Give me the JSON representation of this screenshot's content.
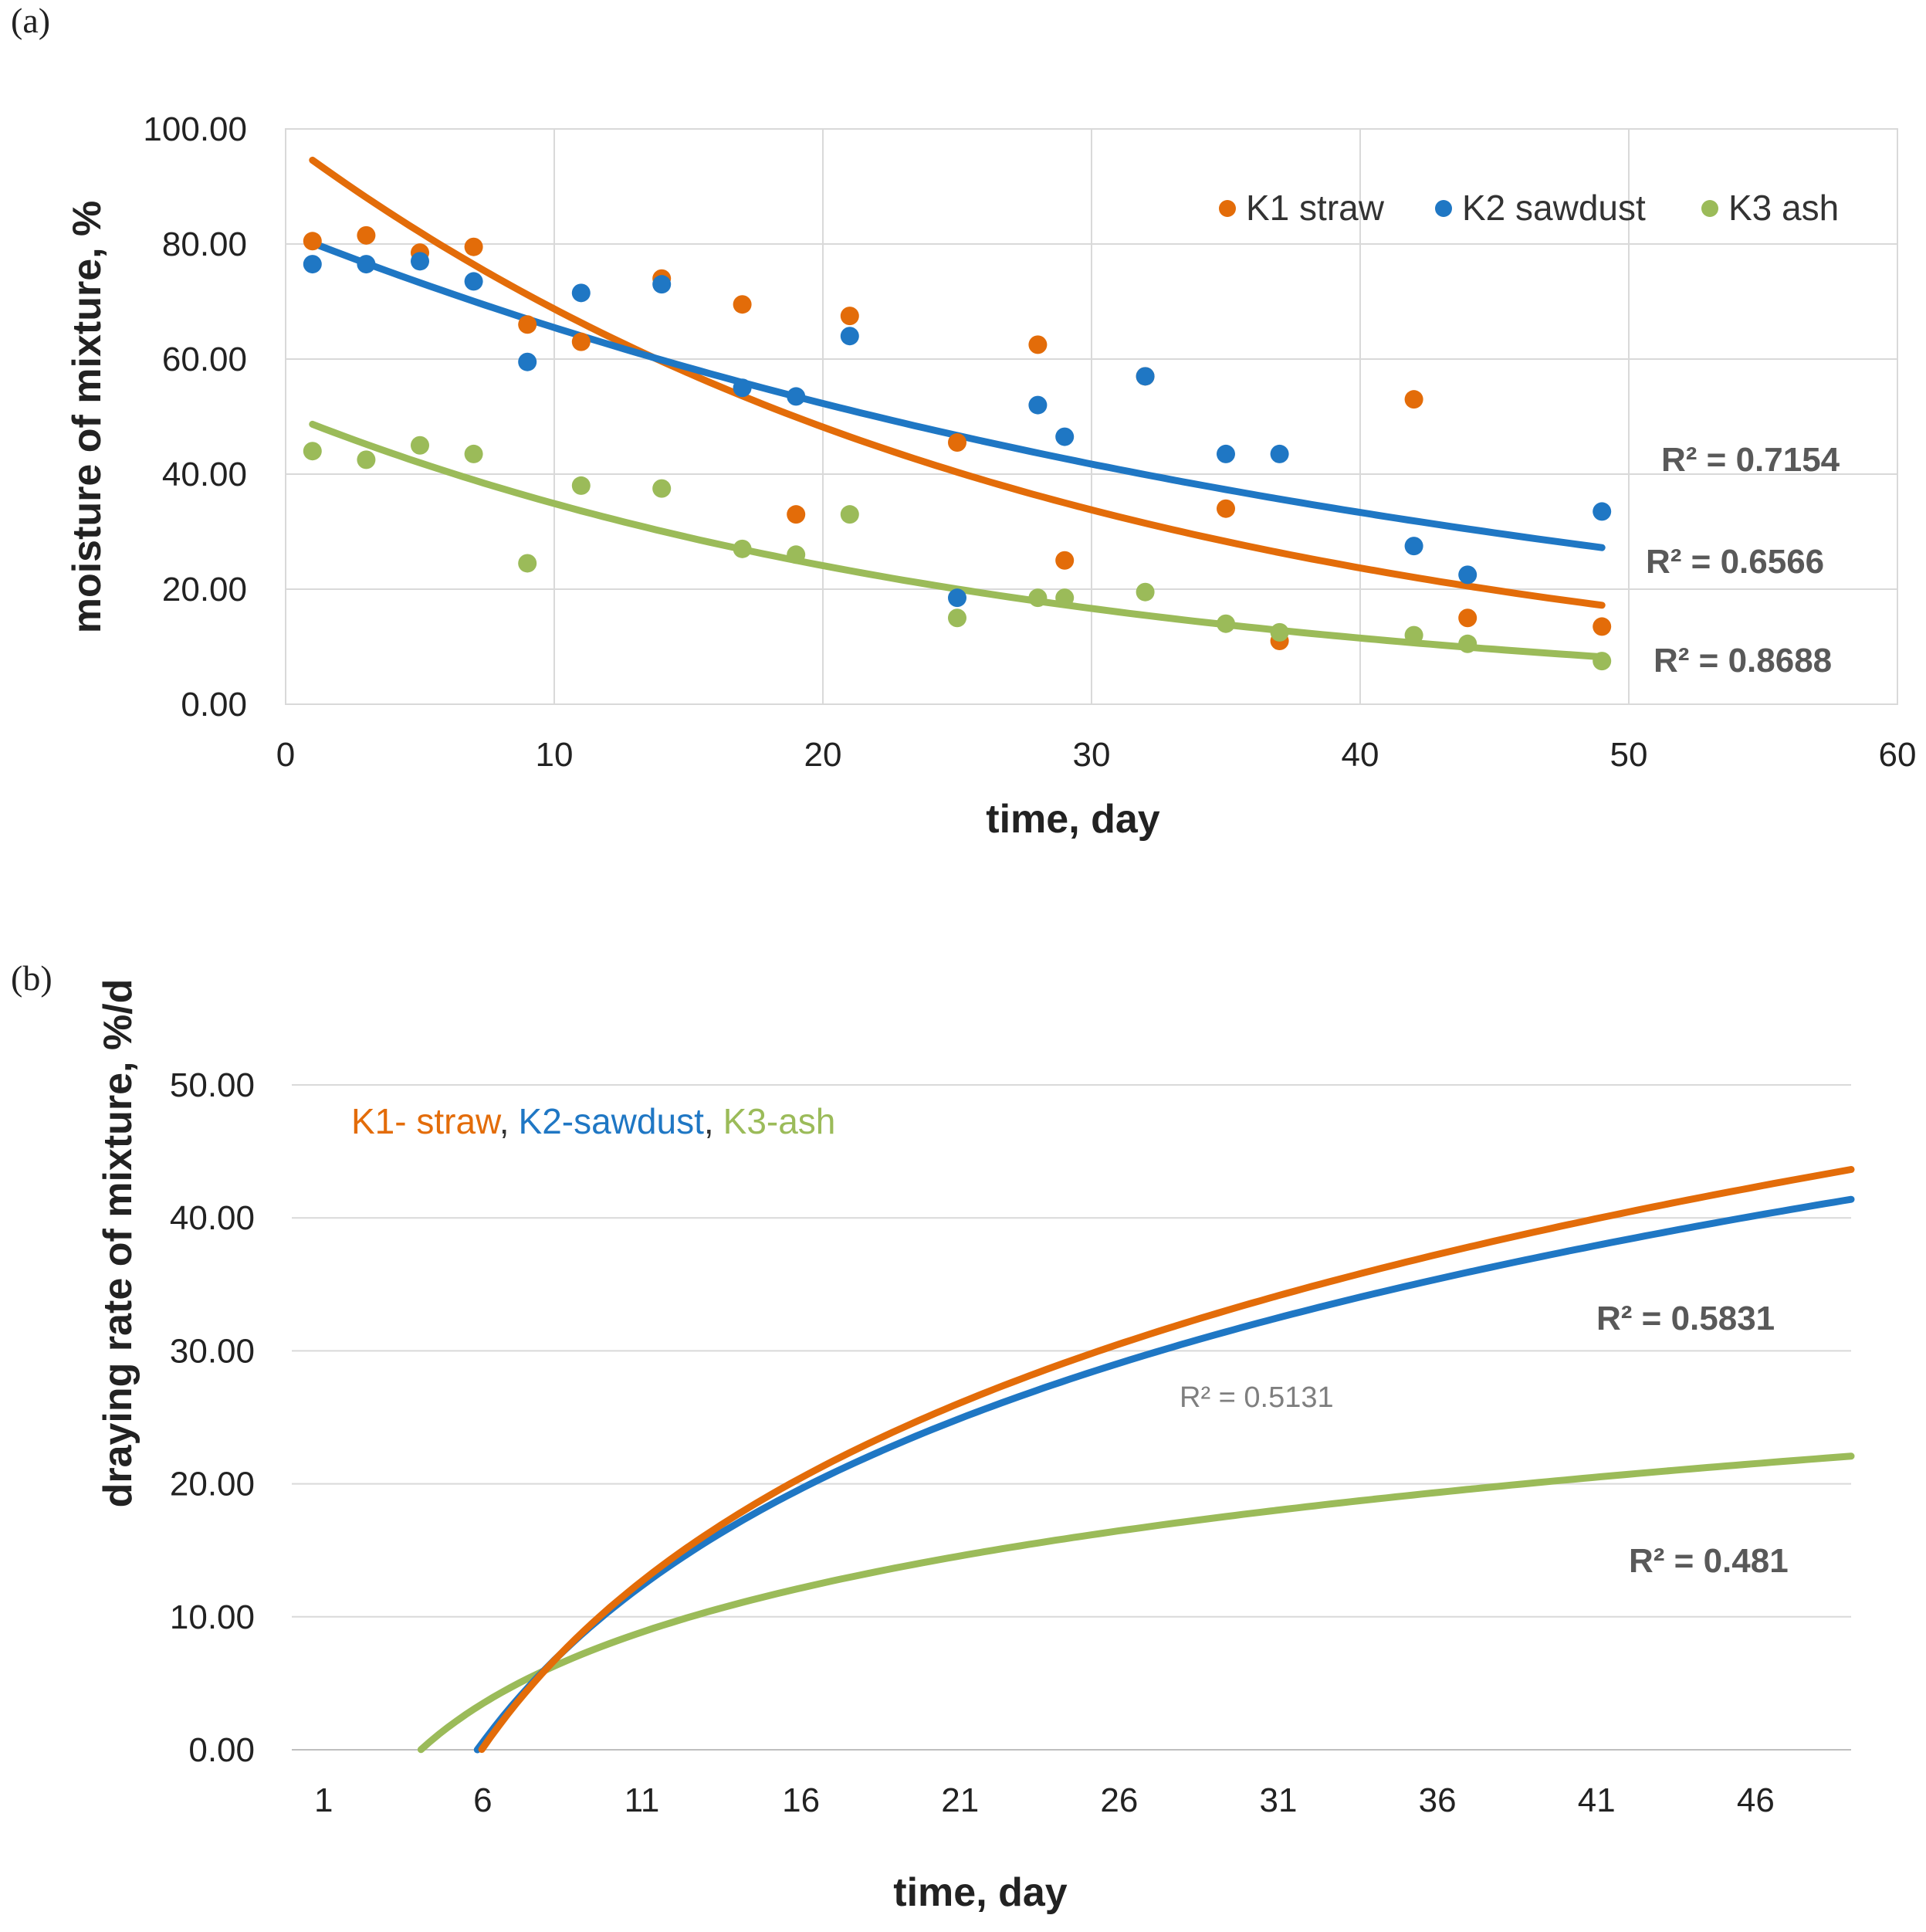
{
  "colors": {
    "k1": "#E36C09",
    "k2": "#1F77C4",
    "k3": "#9BBB59",
    "grid": "#D9D9D9",
    "axis": "#BFBFBF"
  },
  "chart_data": [
    {
      "id": "a",
      "panel_label": "(a)",
      "type": "scatter",
      "xlabel": "time, day",
      "ylabel": "moisture of mixture, %",
      "xlim": [
        0,
        60
      ],
      "ylim": [
        0,
        100
      ],
      "x_ticks": [
        "0",
        "10",
        "20",
        "30",
        "40",
        "50",
        "60"
      ],
      "y_ticks": [
        "0.00",
        "20.00",
        "40.00",
        "60.00",
        "80.00",
        "100.00"
      ],
      "legend": [
        "K1 straw",
        "K2 sawdust",
        "K3 ash"
      ],
      "series": [
        {
          "name": "K1 straw",
          "color_key": "k1",
          "x": [
            1,
            3,
            5,
            7,
            9,
            11,
            14,
            17,
            19,
            21,
            25,
            28,
            29,
            32,
            35,
            37,
            42,
            44,
            49
          ],
          "y": [
            80.5,
            81.5,
            78.5,
            79.5,
            66,
            63,
            74,
            69.5,
            33,
            67.5,
            45.5,
            62.5,
            25,
            57,
            34,
            11,
            53,
            15,
            13.5
          ],
          "trend": {
            "a": 98.0,
            "k": 0.0355,
            "x_range": [
              1,
              49
            ]
          },
          "r2": "R² = 0.6566"
        },
        {
          "name": "K2 sawdust",
          "color_key": "k2",
          "x": [
            1,
            3,
            5,
            7,
            9,
            11,
            14,
            17,
            19,
            21,
            25,
            28,
            29,
            32,
            35,
            37,
            42,
            44,
            49
          ],
          "y": [
            76.5,
            76.5,
            77,
            73.5,
            59.5,
            71.5,
            73,
            55,
            53.5,
            64,
            18.5,
            52,
            46.5,
            57,
            43.5,
            43.5,
            27.5,
            22.5,
            33.5
          ],
          "trend": {
            "a": 82.0,
            "k": 0.0225,
            "x_range": [
              1,
              49
            ]
          },
          "r2": "R² = 0.7154"
        },
        {
          "name": "K3 ash",
          "color_key": "k3",
          "x": [
            1,
            3,
            5,
            7,
            9,
            11,
            14,
            17,
            19,
            21,
            25,
            28,
            29,
            32,
            35,
            37,
            42,
            44,
            49
          ],
          "y": [
            44,
            42.5,
            45,
            43.5,
            24.5,
            38,
            37.5,
            27,
            26,
            33,
            15,
            18.5,
            18.5,
            19.5,
            14,
            12.5,
            12,
            10.5,
            7.5
          ],
          "trend": {
            "a": 50.5,
            "k": 0.037,
            "x_range": [
              1,
              49
            ]
          },
          "r2": "R² = 0.8688"
        }
      ]
    },
    {
      "id": "b",
      "panel_label": "(b)",
      "type": "line",
      "xlabel": "time, day",
      "ylabel": "draying rate of mixture, %/d",
      "xlim": [
        0,
        49
      ],
      "ylim": [
        0,
        50
      ],
      "x_ticks": [
        "1",
        "6",
        "11",
        "16",
        "21",
        "26",
        "31",
        "36",
        "41",
        "46"
      ],
      "y_ticks": [
        "0.00",
        "10.00",
        "20.00",
        "30.00",
        "40.00",
        "50.00"
      ],
      "legend": [
        "K1- straw",
        "K2-sawdust",
        "K3-ash"
      ],
      "legend_separator": ",",
      "series": [
        {
          "name": "K1- straw",
          "color_key": "k1",
          "trend": {
            "type": "log",
            "a": 20.72,
            "b": -37.0,
            "x_range": [
              5.97,
              49
            ]
          },
          "r2": "R² = 0.5831"
        },
        {
          "name": "K2-sawdust",
          "color_key": "k2",
          "trend": {
            "type": "log",
            "a": 19.45,
            "b": -34.3,
            "x_range": [
              5.83,
              49
            ]
          },
          "r2": "R² = 0.5131"
        },
        {
          "name": "K3-ash",
          "color_key": "k3",
          "trend": {
            "type": "log",
            "a": 8.86,
            "b": -12.4,
            "x_range": [
              4.06,
              49
            ]
          },
          "r2": "R² = 0.481"
        }
      ]
    }
  ]
}
